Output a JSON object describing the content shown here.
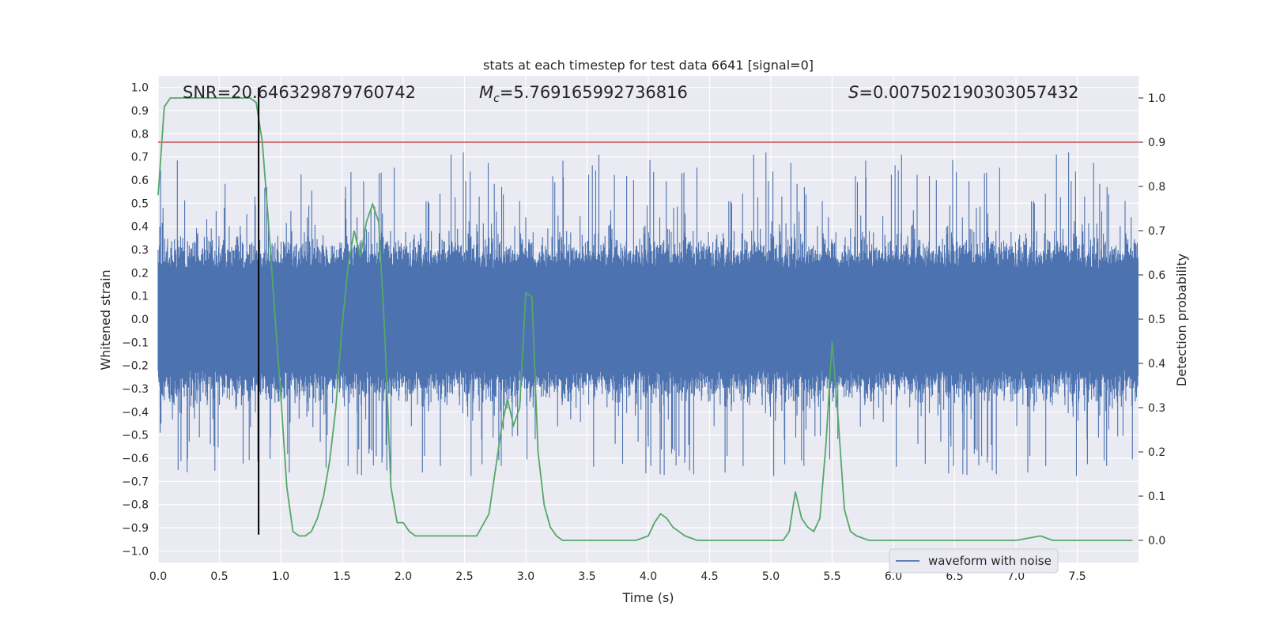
{
  "chart_data": {
    "type": "line",
    "title": "stats at each timestep for test data 6641 [signal=0]",
    "xlabel": "Time (s)",
    "ylabel_left": "Whitened strain",
    "ylabel_right": "Detection probability",
    "xlim": [
      0.0,
      8.0
    ],
    "ylim_left": [
      -1.05,
      1.05
    ],
    "ylim_right": [
      -0.05,
      1.05
    ],
    "x_ticks": [
      "0.0",
      "0.5",
      "1.0",
      "1.5",
      "2.0",
      "2.5",
      "3.0",
      "3.5",
      "4.0",
      "4.5",
      "5.0",
      "5.5",
      "6.0",
      "6.5",
      "7.0",
      "7.5"
    ],
    "y_ticks_left": [
      "1.0",
      "0.9",
      "0.8",
      "0.7",
      "0.6",
      "0.5",
      "0.4",
      "0.3",
      "0.2",
      "0.1",
      "0.0",
      "−0.1",
      "−0.2",
      "−0.3",
      "−0.4",
      "−0.5",
      "−0.6",
      "−0.7",
      "−0.8",
      "−0.9",
      "−1.0"
    ],
    "y_ticks_right": [
      "1.0",
      "0.9",
      "0.8",
      "0.7",
      "0.6",
      "0.5",
      "0.4",
      "0.3",
      "0.2",
      "0.1",
      "0.0"
    ],
    "grid": true,
    "legend": {
      "placement": "lower-right",
      "entries": [
        "waveform with noise"
      ]
    },
    "annotations": {
      "snr": "SNR=20.646329879760742",
      "mc_symbol": "M",
      "mc_sub": "c",
      "mc_value": "=5.769165992736816",
      "s_symbol": "S",
      "s_value": "=0.007502190303057432"
    },
    "threshold_right": 0.9,
    "marker_time": 0.82,
    "marker_range_left": [
      -0.93,
      1.0
    ],
    "noise_series": {
      "name": "waveform with noise",
      "color": "#4c72b0",
      "duration_s": 8.0,
      "core_amplitude": 0.22,
      "typical_amplitude": 0.4
    },
    "detection_series": {
      "color": "#55a868",
      "x": [
        0.0,
        0.05,
        0.1,
        0.15,
        0.2,
        0.3,
        0.5,
        0.6,
        0.7,
        0.75,
        0.8,
        0.85,
        0.9,
        0.95,
        1.0,
        1.05,
        1.1,
        1.15,
        1.2,
        1.25,
        1.3,
        1.35,
        1.4,
        1.45,
        1.5,
        1.55,
        1.6,
        1.65,
        1.7,
        1.75,
        1.8,
        1.85,
        1.9,
        1.95,
        2.0,
        2.05,
        2.1,
        2.2,
        2.3,
        2.4,
        2.5,
        2.6,
        2.7,
        2.8,
        2.85,
        2.9,
        2.95,
        3.0,
        3.05,
        3.1,
        3.15,
        3.2,
        3.25,
        3.3,
        3.4,
        3.5,
        3.7,
        3.9,
        4.0,
        4.05,
        4.1,
        4.15,
        4.2,
        4.25,
        4.3,
        4.4,
        4.5,
        4.7,
        4.9,
        5.0,
        5.1,
        5.15,
        5.2,
        5.25,
        5.3,
        5.35,
        5.4,
        5.45,
        5.5,
        5.55,
        5.6,
        5.65,
        5.7,
        5.8,
        6.0,
        6.3,
        6.6,
        6.8,
        7.0,
        7.2,
        7.3,
        7.5,
        7.7,
        7.95
      ],
      "y": [
        0.78,
        0.98,
        1.0,
        1.0,
        1.0,
        1.0,
        1.0,
        1.0,
        1.0,
        1.0,
        0.99,
        0.9,
        0.72,
        0.52,
        0.33,
        0.12,
        0.02,
        0.01,
        0.01,
        0.02,
        0.05,
        0.1,
        0.18,
        0.3,
        0.48,
        0.62,
        0.7,
        0.64,
        0.72,
        0.76,
        0.72,
        0.46,
        0.12,
        0.04,
        0.04,
        0.02,
        0.01,
        0.01,
        0.01,
        0.01,
        0.01,
        0.01,
        0.06,
        0.25,
        0.32,
        0.26,
        0.3,
        0.56,
        0.55,
        0.2,
        0.08,
        0.03,
        0.01,
        0.0,
        0.0,
        0.0,
        0.0,
        0.0,
        0.01,
        0.04,
        0.06,
        0.05,
        0.03,
        0.02,
        0.01,
        0.0,
        0.0,
        0.0,
        0.0,
        0.0,
        0.0,
        0.02,
        0.11,
        0.05,
        0.03,
        0.02,
        0.05,
        0.22,
        0.45,
        0.27,
        0.07,
        0.02,
        0.01,
        0.0,
        0.0,
        0.0,
        0.0,
        0.0,
        0.0,
        0.01,
        0.0,
        0.0,
        0.0,
        0.0
      ]
    }
  }
}
